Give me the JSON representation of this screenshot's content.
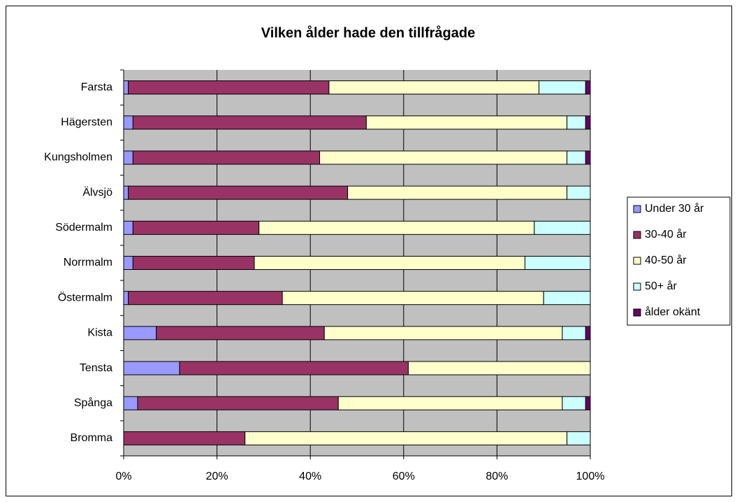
{
  "chart_data": {
    "type": "stacked_bar_horizontal_100",
    "title": "Vilken ålder hade den tillfrågade",
    "categories": [
      "Farsta",
      "Hägersten",
      "Kungsholmen",
      "Älvsjö",
      "Södermalm",
      "Norrmalm",
      "Östermalm",
      "Kista",
      "Tensta",
      "Spånga",
      "Bromma"
    ],
    "series": [
      {
        "name": "Under 30 år",
        "color": "#9999ff",
        "values": [
          1,
          2,
          2,
          1,
          2,
          2,
          1,
          7,
          12,
          3,
          0
        ]
      },
      {
        "name": "30-40 år",
        "color": "#993366",
        "values": [
          43,
          50,
          40,
          47,
          27,
          26,
          33,
          36,
          49,
          43,
          26
        ]
      },
      {
        "name": "40-50 år",
        "color": "#ffffcc",
        "values": [
          45,
          43,
          53,
          47,
          59,
          58,
          56,
          51,
          39,
          48,
          69
        ]
      },
      {
        "name": "50+ år",
        "color": "#ccffff",
        "values": [
          10,
          4,
          4,
          5,
          12,
          14,
          10,
          5,
          0,
          5,
          5
        ]
      },
      {
        "name": "ålder okänt",
        "color": "#660066",
        "values": [
          1,
          1,
          1,
          0,
          0,
          0,
          0,
          1,
          0,
          1,
          0
        ]
      }
    ],
    "xlim": [
      0,
      100
    ],
    "xticks": [
      {
        "value": 0,
        "label": "0%"
      },
      {
        "value": 20,
        "label": "20%"
      },
      {
        "value": 40,
        "label": "40%"
      },
      {
        "value": 60,
        "label": "60%"
      },
      {
        "value": 80,
        "label": "80%"
      },
      {
        "value": 100,
        "label": "100%"
      }
    ],
    "grid": true,
    "legend": "right"
  }
}
